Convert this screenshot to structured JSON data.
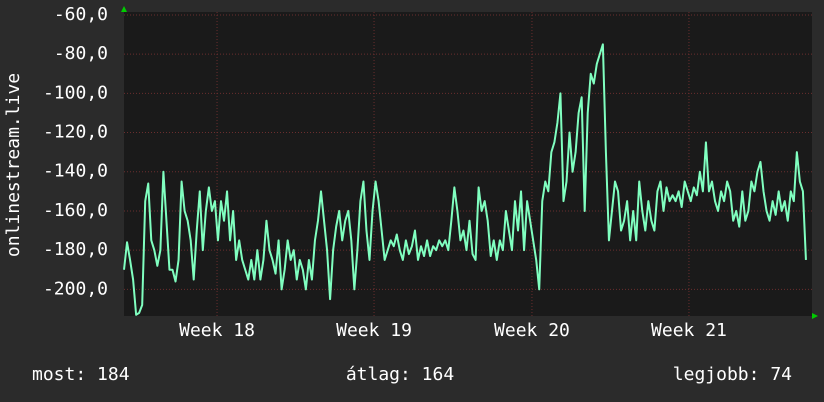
{
  "chart_data": {
    "type": "line",
    "y_label": "onlinestream.live",
    "series": [
      {
        "name": "onlinestream.live",
        "color": "#80ffc0",
        "values": [
          -190,
          -176,
          -185,
          -195,
          -213,
          -212,
          -208,
          -155,
          -146,
          -175,
          -180,
          -188,
          -180,
          -140,
          -165,
          -190,
          -190,
          -196,
          -185,
          -145,
          -160,
          -165,
          -175,
          -195,
          -170,
          -150,
          -180,
          -160,
          -148,
          -160,
          -155,
          -175,
          -155,
          -165,
          -150,
          -175,
          -160,
          -185,
          -175,
          -185,
          -190,
          -195,
          -185,
          -195,
          -180,
          -195,
          -185,
          -165,
          -180,
          -185,
          -192,
          -175,
          -200,
          -190,
          -175,
          -185,
          -180,
          -195,
          -185,
          -190,
          -200,
          -185,
          -195,
          -175,
          -165,
          -150,
          -165,
          -180,
          -205,
          -180,
          -168,
          -160,
          -175,
          -165,
          -160,
          -175,
          -200,
          -180,
          -155,
          -145,
          -170,
          -185,
          -160,
          -145,
          -155,
          -170,
          -185,
          -180,
          -175,
          -178,
          -172,
          -180,
          -185,
          -175,
          -182,
          -178,
          -170,
          -185,
          -178,
          -183,
          -175,
          -183,
          -178,
          -180,
          -175,
          -178,
          -175,
          -180,
          -165,
          -148,
          -160,
          -175,
          -170,
          -180,
          -165,
          -182,
          -185,
          -148,
          -160,
          -155,
          -165,
          -183,
          -175,
          -185,
          -175,
          -180,
          -160,
          -170,
          -180,
          -155,
          -170,
          -150,
          -180,
          -155,
          -165,
          -175,
          -185,
          -200,
          -155,
          -145,
          -150,
          -130,
          -125,
          -115,
          -100,
          -155,
          -145,
          -120,
          -140,
          -130,
          -110,
          -102,
          -160,
          -110,
          -90,
          -95,
          -85,
          -80,
          -75,
          -130,
          -175,
          -160,
          -145,
          -150,
          -170,
          -165,
          -155,
          -175,
          -160,
          -175,
          -145,
          -160,
          -170,
          -155,
          -165,
          -170,
          -150,
          -145,
          -160,
          -148,
          -155,
          -152,
          -155,
          -150,
          -158,
          -145,
          -150,
          -155,
          -148,
          -152,
          -140,
          -150,
          -125,
          -150,
          -145,
          -155,
          -160,
          -150,
          -155,
          -145,
          -150,
          -165,
          -160,
          -168,
          -150,
          -165,
          -160,
          -145,
          -150,
          -140,
          -135,
          -150,
          -160,
          -165,
          -155,
          -162,
          -150,
          -160,
          -155,
          -165,
          -150,
          -155,
          -130,
          -145,
          -150,
          -185
        ]
      }
    ],
    "xlim": [
      0,
      227
    ],
    "xticks": [
      {
        "value": 30.7,
        "label": "Week 18"
      },
      {
        "value": 82.5,
        "label": "Week 19"
      },
      {
        "value": 134.6,
        "label": "Week 20"
      },
      {
        "value": 186.4,
        "label": "Week 21"
      }
    ],
    "ylim": [
      -213.6,
      -58.5
    ],
    "yticks": [
      {
        "value": -60,
        "label": "-60,0"
      },
      {
        "value": -80,
        "label": "-80,0"
      },
      {
        "value": -100,
        "label": "-100,0"
      },
      {
        "value": -120,
        "label": "-120,0"
      },
      {
        "value": -140,
        "label": "-140,0"
      },
      {
        "value": -160,
        "label": "-160,0"
      },
      {
        "value": -180,
        "label": "-180,0"
      },
      {
        "value": -200,
        "label": "-200,0"
      }
    ],
    "grid": true
  },
  "footer": [
    "most: 184",
    "átlag: 164",
    "legjobb: 74"
  ]
}
